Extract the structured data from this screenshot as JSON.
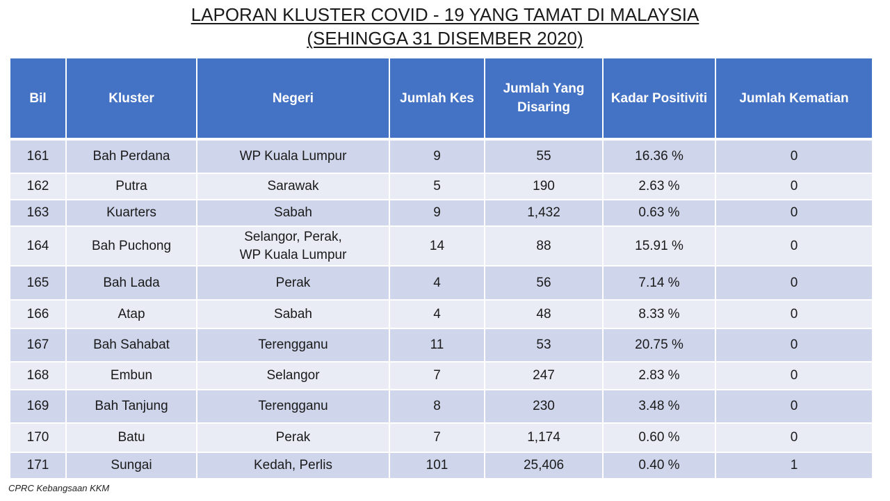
{
  "title": {
    "line1": "LAPORAN KLUSTER COVID - 19 YANG TAMAT DI MALAYSIA",
    "line2": "(SEHINGGA 31 DISEMBER 2020)"
  },
  "table": {
    "headers": {
      "bil": "Bil",
      "kluster": "Kluster",
      "negeri": "Negeri",
      "jumlah_kes": "Jumlah Kes",
      "jumlah_disaring_1": "Jumlah Yang",
      "jumlah_disaring_2": "Disaring",
      "kadar_positiviti": "Kadar Positiviti",
      "jumlah_kematian": "Jumlah Kematian"
    },
    "rows": [
      {
        "bil": "161",
        "kluster": "Bah Perdana",
        "negeri_1": "WP Kuala Lumpur",
        "negeri_2": "",
        "kes": "9",
        "disaring": "55",
        "positiviti": "16.36 %",
        "kematian": "0"
      },
      {
        "bil": "162",
        "kluster": "Putra",
        "negeri_1": "Sarawak",
        "negeri_2": "",
        "kes": "5",
        "disaring": "190",
        "positiviti": "2.63 %",
        "kematian": "0"
      },
      {
        "bil": "163",
        "kluster": "Kuarters",
        "negeri_1": "Sabah",
        "negeri_2": "",
        "kes": "9",
        "disaring": "1,432",
        "positiviti": "0.63 %",
        "kematian": "0"
      },
      {
        "bil": "164",
        "kluster": "Bah Puchong",
        "negeri_1": "Selangor, Perak,",
        "negeri_2": "WP Kuala Lumpur",
        "kes": "14",
        "disaring": "88",
        "positiviti": "15.91 %",
        "kematian": "0"
      },
      {
        "bil": "165",
        "kluster": "Bah Lada",
        "negeri_1": "Perak",
        "negeri_2": "",
        "kes": "4",
        "disaring": "56",
        "positiviti": "7.14 %",
        "kematian": "0"
      },
      {
        "bil": "166",
        "kluster": "Atap",
        "negeri_1": "Sabah",
        "negeri_2": "",
        "kes": "4",
        "disaring": "48",
        "positiviti": "8.33 %",
        "kematian": "0"
      },
      {
        "bil": "167",
        "kluster": "Bah Sahabat",
        "negeri_1": "Terengganu",
        "negeri_2": "",
        "kes": "11",
        "disaring": "53",
        "positiviti": "20.75 %",
        "kematian": "0"
      },
      {
        "bil": "168",
        "kluster": "Embun",
        "negeri_1": "Selangor",
        "negeri_2": "",
        "kes": "7",
        "disaring": "247",
        "positiviti": "2.83 %",
        "kematian": "0"
      },
      {
        "bil": "169",
        "kluster": "Bah Tanjung",
        "negeri_1": "Terengganu",
        "negeri_2": "",
        "kes": "8",
        "disaring": "230",
        "positiviti": "3.48 %",
        "kematian": "0"
      },
      {
        "bil": "170",
        "kluster": "Batu",
        "negeri_1": "Perak",
        "negeri_2": "",
        "kes": "7",
        "disaring": "1,174",
        "positiviti": "0.60 %",
        "kematian": "0"
      },
      {
        "bil": "171",
        "kluster": "Sungai",
        "negeri_1": "Kedah, Perlis",
        "negeri_2": "",
        "kes": "101",
        "disaring": "25,406",
        "positiviti": "0.40 %",
        "kematian": "1"
      }
    ]
  },
  "footer": {
    "source": "CPRC Kebangsaan KKM"
  },
  "colors": {
    "header_bg": "#4472c4",
    "row_odd": "#cfd5ea",
    "row_even": "#e9ebf5"
  }
}
